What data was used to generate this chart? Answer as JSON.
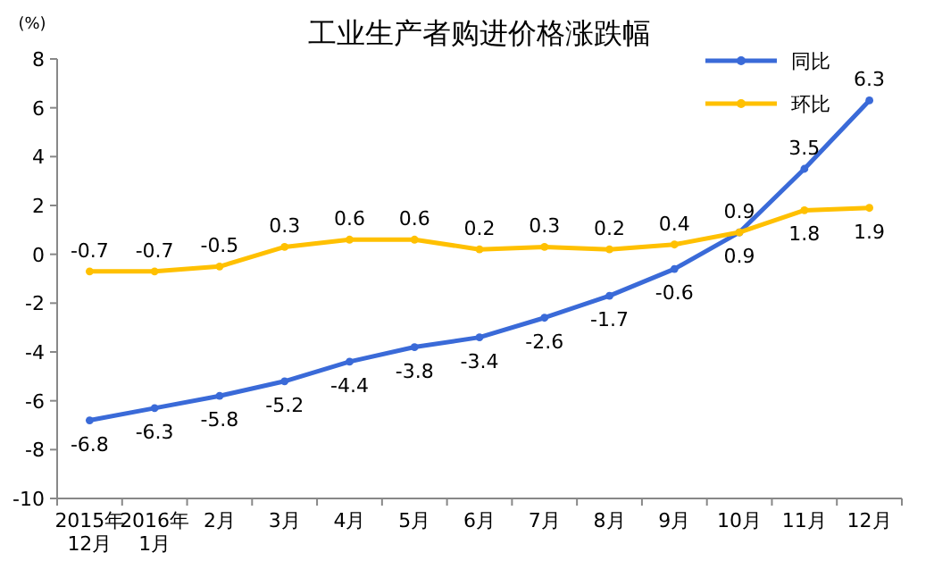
{
  "chart_data": {
    "type": "line",
    "title": "工业生产者购进价格涨跌幅",
    "ylabel": "(%)",
    "categories": [
      "2015年\n12月",
      "2016年\n1月",
      "2月",
      "3月",
      "4月",
      "5月",
      "6月",
      "7月",
      "8月",
      "9月",
      "10月",
      "11月",
      "12月"
    ],
    "series": [
      {
        "name": "同比",
        "color": "#3a6ad8",
        "values": [
          -6.8,
          -6.3,
          -5.8,
          -5.2,
          -4.4,
          -3.8,
          -3.4,
          -2.6,
          -1.7,
          -0.6,
          0.9,
          3.5,
          6.3
        ]
      },
      {
        "name": "环比",
        "color": "#ffc000",
        "values": [
          -0.7,
          -0.7,
          -0.5,
          0.3,
          0.6,
          0.6,
          0.2,
          0.3,
          0.2,
          0.4,
          0.9,
          1.8,
          1.9
        ]
      }
    ],
    "ylim": [
      -10,
      8
    ],
    "yticks": [
      -10,
      -8,
      -6,
      -4,
      -2,
      0,
      2,
      4,
      6,
      8
    ],
    "legend": "top right",
    "marker": "circle",
    "data_labels": true
  }
}
